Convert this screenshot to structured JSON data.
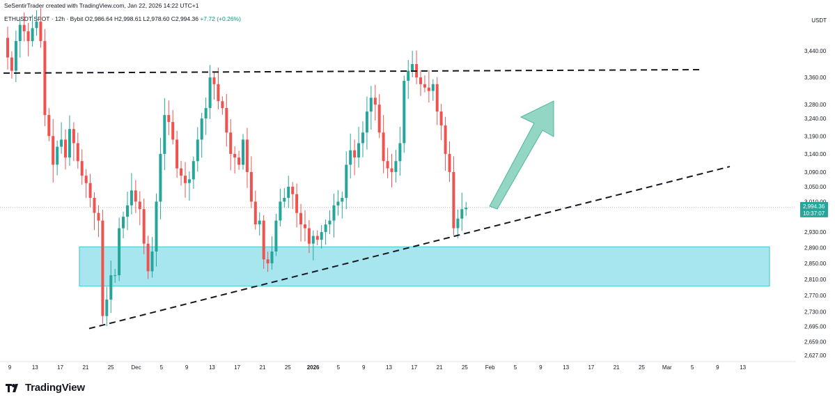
{
  "header": {
    "credit": "SeSentirTrader created with TradingView.com, Jan 22, 2026 14:22 UTC+1",
    "symbol": "ETHUSDT SPOT · 12h · Bybit",
    "ohlc": "O2,986.64  H2,998.61  L2,978.60  C2,994.36",
    "change": "+7.72 (+0.26%)",
    "currency": "USDT"
  },
  "footer": {
    "brand": "TradingView"
  },
  "colors": {
    "up": "#26a69a",
    "down": "#ef5350",
    "zone_fill": "#a8e6ef",
    "zone_border": "#3fc3d7",
    "arrow": "#7fcfb8",
    "price_label": "#26a69a"
  },
  "chart_data": {
    "type": "candlestick",
    "y_scale": "log",
    "y_ticks": [
      "3,440.00",
      "3,360.00",
      "3,280.00",
      "3,240.00",
      "3,190.00",
      "3,140.00",
      "3,090.00",
      "3,050.00",
      "3,010.00",
      "2,930.00",
      "2,890.00",
      "2,850.00",
      "2,810.00",
      "2,770.00",
      "2,730.00",
      "2,695.00",
      "2,659.00",
      "2,627.00"
    ],
    "x_ticks": [
      "9",
      "13",
      "17",
      "21",
      "25",
      "Dec",
      "5",
      "9",
      "13",
      "17",
      "21",
      "25",
      "2026",
      "5",
      "9",
      "13",
      "17",
      "21",
      "25",
      "Feb",
      "5",
      "9",
      "13",
      "17",
      "21",
      "25",
      "Mar",
      "5",
      "9",
      "13"
    ],
    "last_price": "2,994.36",
    "countdown": "10:37:07",
    "price_path": [
      3480,
      3420,
      3380,
      3470,
      3520,
      3500,
      3470,
      3510,
      3530,
      3470,
      3250,
      3190,
      3110,
      3160,
      3180,
      3130,
      3210,
      3170,
      3120,
      3080,
      3060,
      3020,
      2980,
      2960,
      2720,
      2760,
      2820,
      2820,
      2940,
      2970,
      3000,
      3040,
      3010,
      2990,
      2900,
      2830,
      2880,
      3010,
      3140,
      3250,
      3230,
      3180,
      3100,
      3080,
      3060,
      3070,
      3120,
      3180,
      3240,
      3270,
      3360,
      3340,
      3290,
      3270,
      3200,
      3140,
      3130,
      3110,
      3180,
      3090,
      3010,
      2950,
      2960,
      2860,
      2850,
      2880,
      2960,
      3010,
      3020,
      3050,
      3030,
      2980,
      2950,
      2940,
      2900,
      2920,
      2910,
      2930,
      2950,
      2960,
      3000,
      3010,
      3020,
      3110,
      3150,
      3130,
      3170,
      3200,
      3260,
      3300,
      3280,
      3200,
      3120,
      3100,
      3090,
      3120,
      3170,
      3350,
      3380,
      3400,
      3360,
      3340,
      3330,
      3320,
      3340,
      3260,
      3220,
      3140,
      3090,
      2940,
      2965,
      2990,
      2994
    ],
    "annotations": [
      {
        "type": "horizontal-dashed-line",
        "price": 3375
      },
      {
        "type": "rising-dashed-trendline",
        "from_price": 2690,
        "to_price": 3105
      },
      {
        "type": "support-zone",
        "top": 2892,
        "bottom": 2793
      },
      {
        "type": "up-arrow"
      }
    ]
  }
}
